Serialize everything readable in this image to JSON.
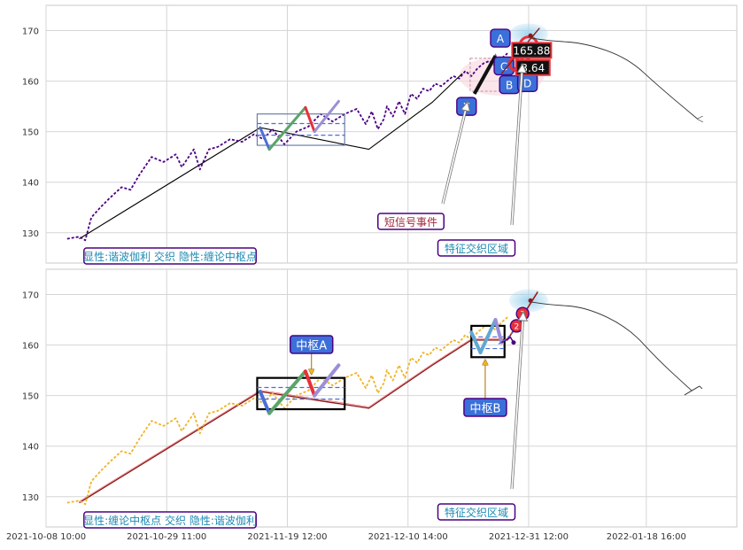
{
  "chart_data": [
    {
      "type": "line",
      "ylim": [
        124,
        175
      ],
      "yticks": [
        130,
        140,
        150,
        160,
        170
      ],
      "grid": true,
      "colors": {
        "price": "#4b0082",
        "trend": "#000000",
        "accent": "#e8303a",
        "box": "#6b7fa8"
      },
      "price_line": {
        "x": [
          0.0,
          2.0,
          3.0,
          4.0,
          5.5,
          7.0,
          9.0,
          10.5,
          12.0,
          14.0,
          16.0,
          18.0,
          19.0,
          21.0,
          22.0,
          23.5,
          25.0,
          27.0,
          29.0,
          31.0,
          32.5,
          34.0,
          36.0,
          38.0,
          40.0,
          42.0,
          44.0,
          46.0,
          48.0,
          49.5,
          50.5,
          51.5,
          52.5,
          53.0,
          53.5,
          54.0,
          55.0,
          56.0,
          57.0,
          58.0,
          59.0,
          60.0,
          61.0,
          62.0,
          63.0,
          64.0,
          65.0,
          66.0,
          67.0,
          68.0,
          69.0,
          70.0,
          71.0,
          72.0,
          73.0
        ],
        "y": [
          128.8,
          129.2,
          128.5,
          133.0,
          135.0,
          136.8,
          139.0,
          138.5,
          141.5,
          145.0,
          144.0,
          145.5,
          143.0,
          146.5,
          142.5,
          146.5,
          147.0,
          148.5,
          148.0,
          149.5,
          148.5,
          150.5,
          147.5,
          150.0,
          151.0,
          153.5,
          152.0,
          153.5,
          154.5,
          151.5,
          154.0,
          150.5,
          152.5,
          155.0,
          154.0,
          153.0,
          156.0,
          153.5,
          157.5,
          156.5,
          158.5,
          158.0,
          159.5,
          159.0,
          160.0,
          161.0,
          160.5,
          162.0,
          161.0,
          162.5,
          163.5,
          164.0,
          163.0,
          164.5,
          165.5
        ]
      },
      "trend_line": {
        "x": [
          2.0,
          32.0,
          50.0,
          60.5,
          65.5
        ],
        "y": [
          128.8,
          150.8,
          146.5,
          155.8,
          161.5
        ]
      },
      "waves": [
        {
          "x": [
            32.0,
            33.5
          ],
          "y": [
            150.8,
            146.5
          ],
          "color": "#4a6fd6"
        },
        {
          "x": [
            33.5,
            39.5
          ],
          "y": [
            146.5,
            154.8
          ],
          "color": "#5aa469"
        },
        {
          "x": [
            39.5,
            41.0
          ],
          "y": [
            154.8,
            150.0
          ],
          "color": "#e8303a"
        },
        {
          "x": [
            41.0,
            45.0
          ],
          "y": [
            150.0,
            156.0
          ],
          "color": "#9b8fd6"
        }
      ],
      "zhongshu_box": {
        "x0": 31.5,
        "x1": 46.0,
        "y0": 147.3,
        "y1": 153.5
      },
      "zhongshu_box_inner": {
        "x0": 31.5,
        "x1": 46.0,
        "y0": 149.3,
        "y1": 151.6
      },
      "harmonic": {
        "points": [
          "X",
          "A",
          "B",
          "C",
          "D"
        ],
        "x": [
          67.5,
          71.0,
          72.5,
          74.5,
          76.0
        ],
        "y": [
          157.5,
          165.0,
          160.5,
          162.8,
          160.5
        ]
      },
      "callout_value_1": "165.88",
      "callout_value_2": "3.64",
      "curve": {
        "x": [
          77.0,
          80.0,
          86.0,
          93.0,
          98.0,
          104.5
        ],
        "y": [
          168.5,
          168.0,
          167.5,
          164.5,
          159.0,
          152.5
        ]
      },
      "annotations": [
        {
          "text": "短信号事件",
          "color": "#a0283c"
        },
        {
          "text": "特征交织区域",
          "color": "#1e8ab4"
        },
        {
          "text": "显性:谐波伽利 交织 隐性:缠论中枢点",
          "color": "#1e8ab4"
        }
      ]
    },
    {
      "type": "line",
      "ylim": [
        124,
        175
      ],
      "yticks": [
        130,
        140,
        150,
        160,
        170
      ],
      "grid": true,
      "colors": {
        "price": "#f0b429",
        "trend": "#8b1a1a",
        "accent": "#e8303a",
        "box": "#000000"
      },
      "price_line": {
        "x": [
          0.0,
          2.0,
          3.0,
          4.0,
          5.5,
          7.0,
          9.0,
          10.5,
          12.0,
          14.0,
          16.0,
          18.0,
          19.0,
          21.0,
          22.0,
          23.5,
          25.0,
          27.0,
          29.0,
          31.0,
          32.5,
          34.0,
          36.0,
          38.0,
          40.0,
          42.0,
          44.0,
          46.0,
          48.0,
          49.5,
          50.5,
          51.5,
          52.5,
          53.0,
          53.5,
          54.0,
          55.0,
          56.0,
          57.0,
          58.0,
          59.0,
          60.0,
          61.0,
          62.0,
          63.0,
          64.0,
          65.0,
          66.0,
          67.0,
          68.0,
          69.0,
          70.0,
          71.0,
          72.0,
          73.0
        ],
        "y": [
          128.8,
          129.2,
          128.5,
          133.0,
          135.0,
          136.8,
          139.0,
          138.5,
          141.5,
          145.0,
          144.0,
          145.5,
          143.0,
          146.5,
          142.5,
          146.5,
          147.0,
          148.5,
          148.0,
          149.5,
          148.5,
          150.5,
          147.5,
          150.0,
          151.0,
          153.5,
          152.0,
          153.5,
          154.5,
          151.5,
          154.0,
          150.5,
          152.5,
          155.0,
          154.0,
          153.0,
          156.0,
          153.5,
          157.5,
          156.5,
          158.5,
          158.0,
          159.5,
          159.0,
          160.0,
          161.0,
          160.5,
          162.0,
          161.0,
          162.5,
          163.5,
          164.0,
          163.0,
          164.5,
          165.5
        ]
      },
      "trend_line": {
        "x": [
          2.0,
          32.0,
          50.0,
          60.5,
          67.0,
          73.0,
          78.0
        ],
        "y": [
          128.8,
          150.8,
          147.5,
          156.0,
          161.0,
          161.0,
          170.5
        ]
      },
      "waves": [
        {
          "x": [
            32.0,
            33.5
          ],
          "y": [
            150.8,
            146.5
          ],
          "color": "#4a6fd6"
        },
        {
          "x": [
            33.5,
            39.5
          ],
          "y": [
            146.5,
            154.8
          ],
          "color": "#5aa469"
        },
        {
          "x": [
            39.5,
            41.0
          ],
          "y": [
            154.8,
            150.0
          ],
          "color": "#e8303a"
        },
        {
          "x": [
            41.0,
            45.0
          ],
          "y": [
            150.0,
            156.0
          ],
          "color": "#9b8fd6"
        },
        {
          "x": [
            67.0,
            68.5
          ],
          "y": [
            162.5,
            158.5
          ],
          "color": "#5fa8d3"
        },
        {
          "x": [
            68.5,
            71.0
          ],
          "y": [
            158.5,
            165.0
          ],
          "color": "#5fa8d3"
        },
        {
          "x": [
            71.0,
            72.0
          ],
          "y": [
            165.0,
            160.5
          ],
          "color": "#9b8fd6"
        }
      ],
      "zhongshu_box": {
        "x0": 31.5,
        "x1": 46.0,
        "y0": 147.3,
        "y1": 153.5
      },
      "zhongshu_box_inner": {
        "x0": 31.5,
        "x1": 46.0,
        "y0": 149.3,
        "y1": 151.6
      },
      "zhongshu_box_b": {
        "x0": 67.0,
        "x1": 72.5,
        "y0": 157.6,
        "y1": 163.8
      },
      "zhongshu_box_b_inner": {
        "x0": 67.0,
        "x1": 72.5,
        "y0": 159.3,
        "y1": 161.6
      },
      "circle_markers": [
        {
          "text": "2",
          "x": 74.5,
          "y": 163.8
        },
        {
          "text": "3",
          "x": 75.5,
          "y": 166.2
        }
      ],
      "curve": {
        "x": [
          77.0,
          80.0,
          86.0,
          93.0,
          98.0,
          103.5
        ],
        "y": [
          168.5,
          168.0,
          167.5,
          163.5,
          157.0,
          151.0
        ]
      },
      "annotations": [
        {
          "text": "中枢A",
          "color": "#ffffff"
        },
        {
          "text": "中枢B",
          "color": "#ffffff"
        },
        {
          "text": "特征交织区域",
          "color": "#1e8ab4"
        },
        {
          "text": "显性:缠论中枢点 交织 隐性:谐波伽利",
          "color": "#1e8ab4"
        }
      ],
      "xticks": [
        "2021-10-08 10:00",
        "2021-10-29 11:00",
        "2021-11-19 12:00",
        "2021-12-10 14:00",
        "2021-12-31 12:00",
        "2022-01-18 16:00"
      ]
    }
  ]
}
